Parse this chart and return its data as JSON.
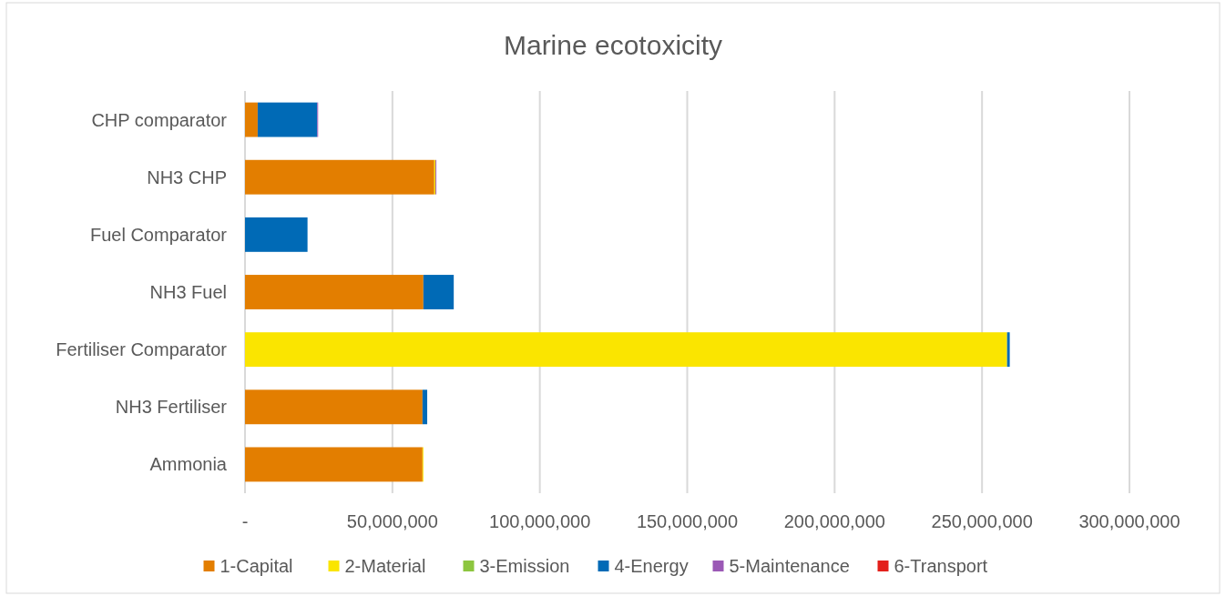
{
  "chart_data": {
    "type": "bar",
    "orientation": "horizontal",
    "stacked": true,
    "title": "Marine ecotoxicity",
    "categories": [
      "CHP comparator",
      "NH3 CHP",
      "Fuel Comparator",
      "NH3 Fuel",
      "Fertiliser Comparator",
      "NH3 Fertiliser",
      "Ammonia"
    ],
    "series": [
      {
        "name": "1-Capital",
        "color": "#e37e00",
        "values": [
          4300000,
          64200000,
          0,
          60500000,
          0,
          60200000,
          60200000
        ]
      },
      {
        "name": "2-Material",
        "color": "#fae500",
        "values": [
          0,
          400000,
          0,
          0,
          258500000,
          0,
          300000
        ]
      },
      {
        "name": "3-Emission",
        "color": "#8dc63f",
        "values": [
          0,
          0,
          0,
          0,
          0,
          0,
          0
        ]
      },
      {
        "name": "4-Energy",
        "color": "#006ab6",
        "values": [
          20200000,
          0,
          21200000,
          10300000,
          900000,
          1600000,
          0
        ]
      },
      {
        "name": "5-Maintenance",
        "color": "#9b59b6",
        "values": [
          300000,
          300000,
          0,
          0,
          0,
          0,
          0
        ]
      },
      {
        "name": "6-Transport",
        "color": "#e3201b",
        "values": [
          0,
          0,
          0,
          0,
          0,
          0,
          0
        ]
      }
    ],
    "xlim": [
      0,
      300000000
    ],
    "xticks": [
      {
        "value": 0,
        "label": "-"
      },
      {
        "value": 50000000,
        "label": "50,000,000"
      },
      {
        "value": 100000000,
        "label": "100,000,000"
      },
      {
        "value": 150000000,
        "label": "150,000,000"
      },
      {
        "value": 200000000,
        "label": "200,000,000"
      },
      {
        "value": 250000000,
        "label": "250,000,000"
      },
      {
        "value": 300000000,
        "label": "300,000,000"
      }
    ],
    "grid": "x",
    "legend": "bottom"
  }
}
